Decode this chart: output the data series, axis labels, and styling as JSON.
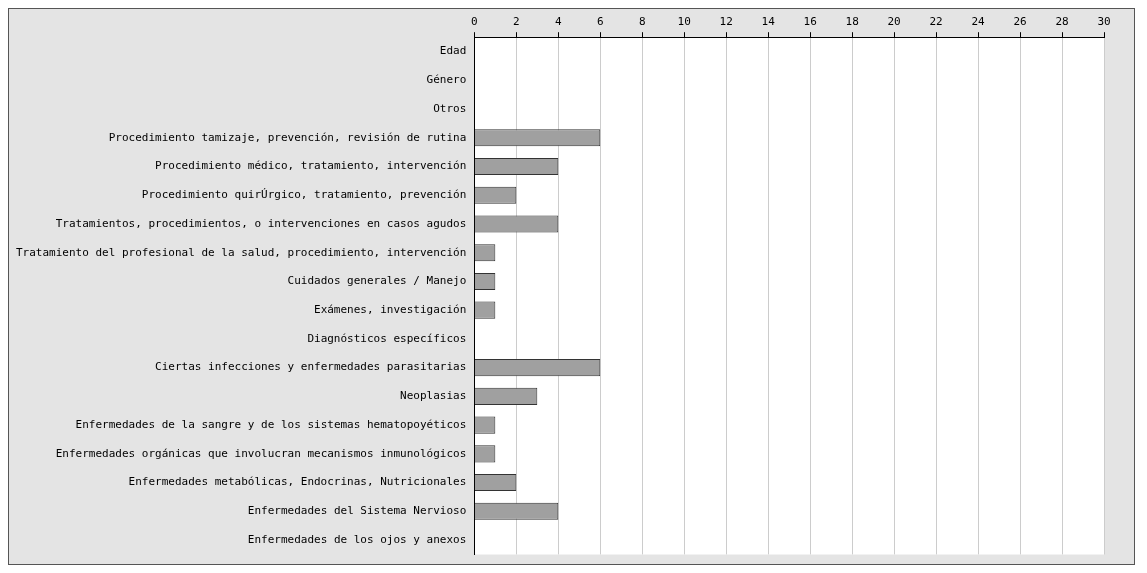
{
  "chart_data": {
    "type": "bar",
    "orientation": "horizontal",
    "categories": [
      "Edad",
      "Género",
      "Otros",
      "Procedimiento tamizaje, prevención, revisión de rutina",
      "Procedimiento médico, tratamiento, intervención",
      "Procedimiento quirÚrgico, tratamiento, prevención",
      "Tratamientos, procedimientos, o intervenciones en casos agudos",
      "Tratamiento del profesional de la salud, procedimiento, intervención",
      "Cuidados generales / Manejo",
      "Exámenes, investigación",
      "Diagnósticos específicos",
      "Ciertas infecciones y enfermedades parasitarias",
      "Neoplasias",
      "Enfermedades de la sangre y de los sistemas hematopoyéticos",
      "Enfermedades orgánicas que involucran mecanismos inmunológicos",
      "Enfermedades metabólicas, Endocrinas, Nutricionales",
      "Enfermedades del Sistema Nervioso",
      "Enfermedades de los ojos y anexos"
    ],
    "values": [
      0,
      0,
      0,
      6,
      4,
      2,
      4,
      1,
      1,
      1,
      0,
      6,
      3,
      1,
      1,
      2,
      4,
      0
    ],
    "color": "#a0a0a0",
    "xlim": [
      0,
      30
    ],
    "xticks": [
      0,
      2,
      4,
      6,
      8,
      10,
      12,
      14,
      16,
      18,
      20,
      22,
      24,
      26,
      28,
      30
    ],
    "grid": "x",
    "legend": false
  }
}
